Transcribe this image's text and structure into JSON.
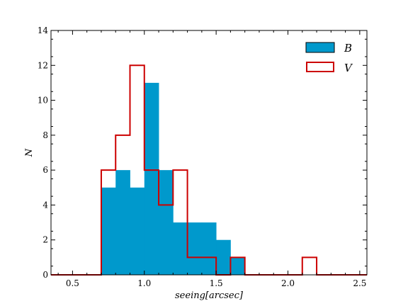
{
  "chart_data": {
    "type": "histogram",
    "xlabel": "seeing[arcsec]",
    "ylabel": "N",
    "xlim": [
      0.35,
      2.55
    ],
    "ylim": [
      0,
      14
    ],
    "x_ticks": [
      "0.5",
      "1.0",
      "1.5",
      "2.0",
      "2.5"
    ],
    "y_ticks": [
      "0",
      "2",
      "4",
      "6",
      "8",
      "10",
      "12",
      "14"
    ],
    "bin_edges": [
      0.7,
      0.8,
      0.9,
      1.0,
      1.1,
      1.2,
      1.3,
      1.4,
      1.5,
      1.6,
      1.7,
      1.8,
      1.9,
      2.0,
      2.1,
      2.2
    ],
    "legend_position": "top-right",
    "series": [
      {
        "name": "B",
        "style": "filled",
        "color": "#0099CC",
        "counts": [
          5,
          6,
          5,
          11,
          6,
          3,
          3,
          3,
          2,
          1,
          0,
          0,
          0,
          0,
          0
        ]
      },
      {
        "name": "V",
        "style": "step",
        "color": "#CC0000",
        "counts": [
          6,
          8,
          12,
          6,
          4,
          6,
          1,
          1,
          0,
          1,
          0,
          0,
          0,
          0,
          1
        ]
      }
    ]
  }
}
